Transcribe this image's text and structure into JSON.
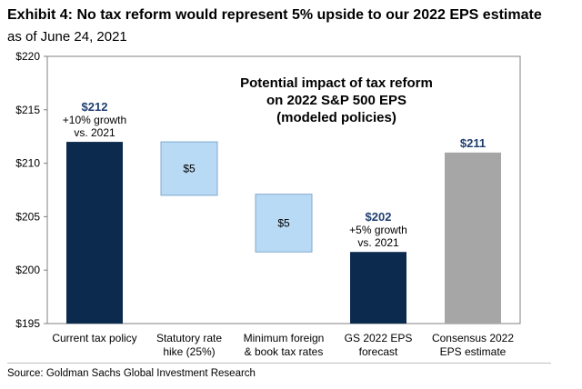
{
  "header": {
    "title": "Exhibit 4: No tax reform would represent 5% upside to our 2022 EPS estimate",
    "subtitle": "as of June 24, 2021"
  },
  "footer": {
    "source": "Source: Goldman Sachs Global Investment Research"
  },
  "colors": {
    "dark_navy": "#0b2a4e",
    "light_blue": "#b9daf5",
    "gray": "#a6a6a6",
    "navy_label": "#1f3e6e",
    "axis": "#808080"
  },
  "chart_data": {
    "type": "bar",
    "subtype": "waterfall",
    "annotation": [
      "Potential impact of tax reform",
      "on 2022 S&P 500 EPS",
      "(modeled policies)"
    ],
    "ylim": [
      195,
      220
    ],
    "yticks": [
      195,
      200,
      205,
      210,
      215,
      220
    ],
    "ytick_labels": [
      "$195",
      "$200",
      "$205",
      "$210",
      "$215",
      "$220"
    ],
    "grid": false,
    "bars": [
      {
        "category": [
          "Current tax policy"
        ],
        "base": 195,
        "top": 212,
        "style": "dark",
        "labels": [
          "$212",
          "+10% growth",
          "vs. 2021"
        ]
      },
      {
        "category": [
          "Statutory rate",
          "hike (25%)"
        ],
        "base": 207,
        "top": 212,
        "style": "light",
        "inner_label": "$5"
      },
      {
        "category": [
          "Minimum foreign",
          "& book tax rates"
        ],
        "base": 201.7,
        "top": 207.1,
        "style": "light",
        "inner_label": "$5"
      },
      {
        "category": [
          "GS 2022 EPS",
          "forecast"
        ],
        "base": 195,
        "top": 201.7,
        "style": "dark",
        "labels": [
          "$202",
          "+5% growth",
          "vs. 2021"
        ]
      },
      {
        "category": [
          "Consensus 2022",
          "EPS estimate"
        ],
        "base": 195,
        "top": 211,
        "style": "gray",
        "labels": [
          "$211"
        ]
      }
    ]
  }
}
